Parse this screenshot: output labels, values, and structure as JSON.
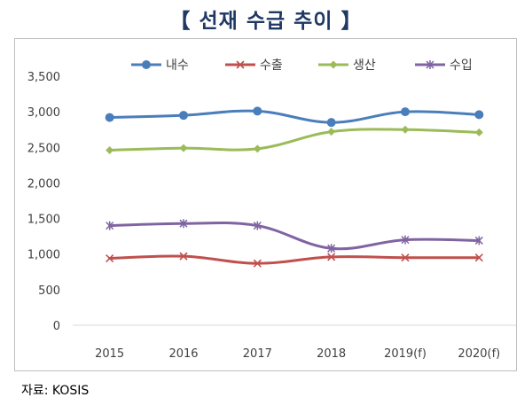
{
  "title": "【 선재 수급 추이 】",
  "source": "자료: KOSIS",
  "chart_data": {
    "type": "line",
    "title": "",
    "xlabel": "",
    "ylabel": "",
    "categories": [
      "2015",
      "2016",
      "2017",
      "2018",
      "2019(f)",
      "2020(f)"
    ],
    "ylim": [
      0,
      3500
    ],
    "yticks": [
      0,
      500,
      1000,
      1500,
      2000,
      2500,
      3000,
      3500
    ],
    "ytick_labels": [
      "0",
      "500",
      "1,000",
      "1,500",
      "2,000",
      "2,500",
      "3,000",
      "3,500"
    ],
    "grid": false,
    "legend": "top",
    "series": [
      {
        "name": "내수",
        "values": [
          2920,
          2950,
          3010,
          2850,
          3000,
          2960
        ],
        "color": "#4a7ebb",
        "marker": "circle"
      },
      {
        "name": "수출",
        "values": [
          940,
          970,
          870,
          960,
          950,
          950
        ],
        "color": "#c0504d",
        "marker": "x"
      },
      {
        "name": "생산",
        "values": [
          2460,
          2490,
          2480,
          2720,
          2750,
          2710
        ],
        "color": "#9bbb59",
        "marker": "diamond"
      },
      {
        "name": "수입",
        "values": [
          1400,
          1430,
          1400,
          1080,
          1200,
          1190
        ],
        "color": "#8064a2",
        "marker": "star"
      }
    ]
  }
}
